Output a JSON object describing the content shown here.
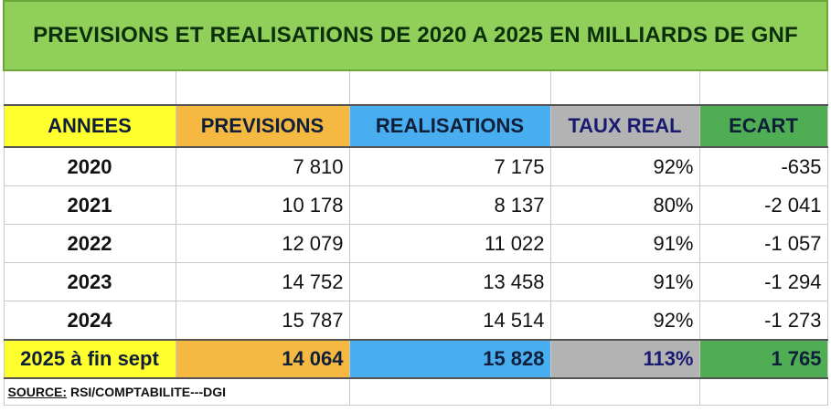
{
  "title": "PREVISIONS ET REALISATIONS DE 2020 A 2025 EN MILLIARDS DE GNF",
  "headers": [
    "ANNEES",
    "PREVISIONS",
    "REALISATIONS",
    "TAUX REAL",
    "ECART"
  ],
  "rows": [
    {
      "year": "2020",
      "prev": "7 810",
      "real": "7 175",
      "taux": "92%",
      "ecart": "-635"
    },
    {
      "year": "2021",
      "prev": "10 178",
      "real": "8 137",
      "taux": "80%",
      "ecart": "-2 041"
    },
    {
      "year": "2022",
      "prev": "12 079",
      "real": "11 022",
      "taux": "91%",
      "ecart": "-1 057"
    },
    {
      "year": "2023",
      "prev": "14 752",
      "real": "13 458",
      "taux": "91%",
      "ecart": "-1 294"
    },
    {
      "year": "2024",
      "prev": "15 787",
      "real": "14 514",
      "taux": "92%",
      "ecart": "-1 273"
    }
  ],
  "total": {
    "year": "2025 à fin sept",
    "prev": "14 064",
    "real": "15 828",
    "taux": "113%",
    "ecart": "1 765"
  },
  "source": {
    "label": "SOURCE:",
    "text": " RSI/COMPTABILITE---DGI"
  },
  "colors": {
    "title_bg": "#8fcf5a",
    "annees": "#ffff2e",
    "previsions": "#f5b942",
    "realisations": "#48aef0",
    "taux": "#b3b3b3",
    "ecart": "#4fad54"
  }
}
